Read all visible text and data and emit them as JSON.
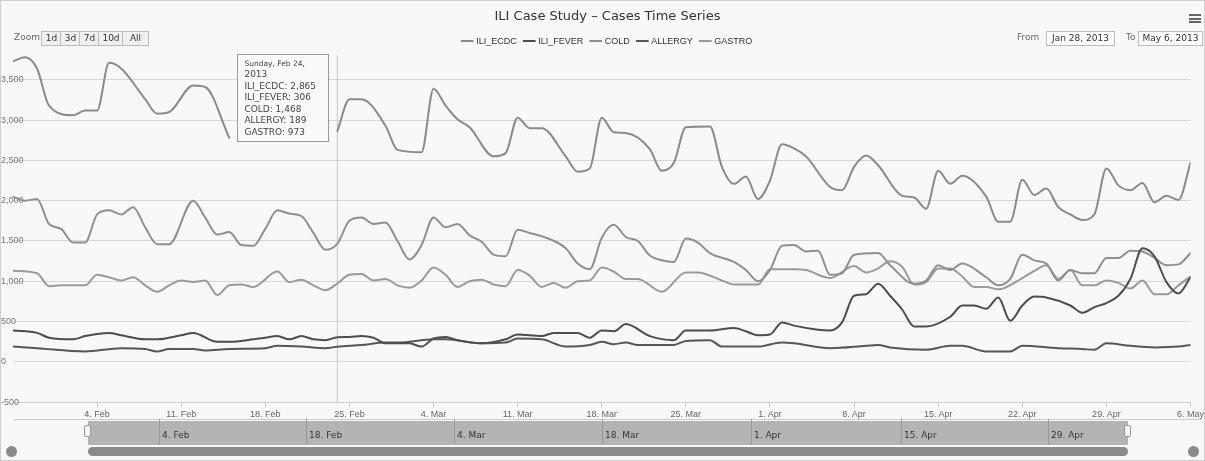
{
  "chart_data": {
    "type": "line",
    "title": "ILI Case Study – Cases Time Series",
    "xlim": [
      "2013-01-28",
      "2013-05-06"
    ],
    "xticks": [
      {
        "value": "2013-02-04",
        "label": "4. Feb"
      },
      {
        "value": "2013-02-11",
        "label": "11. Feb"
      },
      {
        "value": "2013-02-18",
        "label": "18. Feb"
      },
      {
        "value": "2013-02-25",
        "label": "25. Feb"
      },
      {
        "value": "2013-03-04",
        "label": "4. Mar"
      },
      {
        "value": "2013-03-11",
        "label": "11. Mar"
      },
      {
        "value": "2013-03-18",
        "label": "18. Mar"
      },
      {
        "value": "2013-03-25",
        "label": "25. Mar"
      },
      {
        "value": "2013-04-01",
        "label": "1. Apr"
      },
      {
        "value": "2013-04-08",
        "label": "8. Apr"
      },
      {
        "value": "2013-04-15",
        "label": "15. Apr"
      },
      {
        "value": "2013-04-22",
        "label": "22. Apr"
      },
      {
        "value": "2013-04-29",
        "label": "29. Apr"
      },
      {
        "value": "2013-05-06",
        "label": "6. May"
      }
    ],
    "ylim": [
      -500,
      3800
    ],
    "yticks": [
      -500,
      0,
      500,
      {
        "value": 1000,
        "label": "1,000"
      },
      {
        "value": 1500,
        "label": "1,500"
      },
      {
        "value": 2000,
        "label": "2,000"
      },
      {
        "value": 2500,
        "label": "2,500"
      },
      {
        "value": 3000,
        "label": "3,000"
      },
      {
        "value": 3500,
        "label": "3,500"
      }
    ],
    "grid": "y",
    "legend": "top",
    "series": [
      {
        "name": "ILI_ECDC",
        "color": "#8a8a8a",
        "x": [
          "2013-01-28",
          "2013-01-29",
          "2013-01-30",
          "2013-01-31",
          "2013-02-02",
          "2013-02-03",
          "2013-02-04",
          "2013-02-05",
          "2013-02-06",
          "2013-02-08",
          "2013-02-09",
          "2013-02-10",
          "2013-02-12",
          "2013-02-13",
          "2013-02-15",
          "2013-02-16",
          "2013-02-17",
          "2013-02-19",
          "2013-02-21",
          "2013-02-23",
          "2013-02-24",
          "2013-02-25",
          "2013-02-26",
          "2013-02-28",
          "2013-03-01",
          "2013-03-03",
          "2013-03-04",
          "2013-03-05",
          "2013-03-06",
          "2013-03-07",
          "2013-03-09",
          "2013-03-10",
          "2013-03-11",
          "2013-03-12",
          "2013-03-13",
          "2013-03-15",
          "2013-03-16",
          "2013-03-17",
          "2013-03-18",
          "2013-03-19",
          "2013-03-20",
          "2013-03-22",
          "2013-03-23",
          "2013-03-24",
          "2013-03-25",
          "2013-03-27",
          "2013-03-28",
          "2013-03-29",
          "2013-03-30",
          "2013-03-31",
          "2013-04-01",
          "2013-04-02",
          "2013-04-03",
          "2013-04-04",
          "2013-04-06",
          "2013-04-07",
          "2013-04-08",
          "2013-04-09",
          "2013-04-10",
          "2013-04-12",
          "2013-04-13",
          "2013-04-14",
          "2013-04-15",
          "2013-04-16",
          "2013-04-17",
          "2013-04-19",
          "2013-04-20",
          "2013-04-21",
          "2013-04-22",
          "2013-04-23",
          "2013-04-24",
          "2013-04-25",
          "2013-04-26",
          "2013-04-27",
          "2013-04-28",
          "2013-04-29",
          "2013-04-30",
          "2013-05-01",
          "2013-05-02",
          "2013-05-03",
          "2013-05-04",
          "2013-05-05",
          "2013-05-06"
        ],
        "values": [
          3730,
          3780,
          3640,
          3180,
          3060,
          3120,
          3120,
          3710,
          3640,
          3260,
          3080,
          3100,
          3430,
          3410,
          2780,
          null,
          null,
          null,
          null,
          null,
          2865,
          3260,
          3260,
          2930,
          2630,
          2600,
          3390,
          3180,
          3010,
          2910,
          2550,
          2590,
          3030,
          2900,
          2900,
          2550,
          2360,
          2400,
          3030,
          2850,
          2840,
          2640,
          2370,
          2470,
          2910,
          2920,
          2420,
          2210,
          2300,
          2020,
          2250,
          2700,
          2650,
          2550,
          2170,
          2130,
          2420,
          2560,
          2440,
          2060,
          2040,
          1900,
          2370,
          2210,
          2310,
          2050,
          1740,
          1740,
          2260,
          2070,
          2150,
          1920,
          1830,
          1760,
          1830,
          2400,
          2190,
          2130,
          2220,
          1980,
          2060,
          2010,
          2470
        ]
      },
      {
        "name": "ILI_FEVER",
        "color": "#4d4d4d",
        "x": [
          "2013-01-28",
          "2013-01-30",
          "2013-01-31",
          "2013-02-02",
          "2013-02-03",
          "2013-02-05",
          "2013-02-06",
          "2013-02-08",
          "2013-02-09",
          "2013-02-11",
          "2013-02-12",
          "2013-02-14",
          "2013-02-15",
          "2013-02-17",
          "2013-02-18",
          "2013-02-19",
          "2013-02-20",
          "2013-02-21",
          "2013-02-22",
          "2013-02-23",
          "2013-02-24",
          "2013-02-25",
          "2013-02-26",
          "2013-02-27",
          "2013-02-28",
          "2013-03-01",
          "2013-03-02",
          "2013-03-03",
          "2013-03-04",
          "2013-03-05",
          "2013-03-06",
          "2013-03-08",
          "2013-03-10",
          "2013-03-11",
          "2013-03-13",
          "2013-03-14",
          "2013-03-16",
          "2013-03-17",
          "2013-03-18",
          "2013-03-19",
          "2013-03-20",
          "2013-03-22",
          "2013-03-24",
          "2013-03-25",
          "2013-03-27",
          "2013-03-29",
          "2013-03-30",
          "2013-03-31",
          "2013-04-01",
          "2013-04-02",
          "2013-04-03",
          "2013-04-05",
          "2013-04-06",
          "2013-04-07",
          "2013-04-08",
          "2013-04-09",
          "2013-04-10",
          "2013-04-11",
          "2013-04-12",
          "2013-04-13",
          "2013-04-14",
          "2013-04-16",
          "2013-04-17",
          "2013-04-18",
          "2013-04-19",
          "2013-04-20",
          "2013-04-21",
          "2013-04-22",
          "2013-04-23",
          "2013-04-24",
          "2013-04-26",
          "2013-04-27",
          "2013-04-28",
          "2013-04-29",
          "2013-04-30",
          "2013-05-01",
          "2013-05-02",
          "2013-05-03",
          "2013-05-04",
          "2013-05-05",
          "2013-05-06"
        ],
        "values": [
          390,
          360,
          300,
          280,
          320,
          360,
          330,
          280,
          280,
          330,
          360,
          250,
          250,
          280,
          300,
          320,
          280,
          320,
          280,
          270,
          306,
          310,
          320,
          300,
          230,
          230,
          230,
          190,
          290,
          310,
          270,
          230,
          280,
          340,
          320,
          360,
          360,
          300,
          390,
          380,
          470,
          320,
          270,
          390,
          390,
          420,
          380,
          330,
          340,
          490,
          450,
          400,
          390,
          490,
          820,
          840,
          970,
          820,
          650,
          440,
          440,
          560,
          700,
          700,
          660,
          800,
          510,
          700,
          810,
          800,
          700,
          610,
          680,
          730,
          820,
          1030,
          1410,
          1310,
          990,
          850,
          1050
        ]
      },
      {
        "name": "COLD",
        "color": "#8f8f8f",
        "x": [
          "2013-01-28",
          "2013-01-29",
          "2013-01-30",
          "2013-01-31",
          "2013-02-01",
          "2013-02-02",
          "2013-02-03",
          "2013-02-04",
          "2013-02-05",
          "2013-02-06",
          "2013-02-07",
          "2013-02-08",
          "2013-02-09",
          "2013-02-10",
          "2013-02-12",
          "2013-02-13",
          "2013-02-14",
          "2013-02-15",
          "2013-02-16",
          "2013-02-17",
          "2013-02-18",
          "2013-02-19",
          "2013-02-20",
          "2013-02-21",
          "2013-02-22",
          "2013-02-23",
          "2013-02-24",
          "2013-02-25",
          "2013-02-26",
          "2013-02-27",
          "2013-02-28",
          "2013-03-01",
          "2013-03-02",
          "2013-03-03",
          "2013-03-04",
          "2013-03-05",
          "2013-03-06",
          "2013-03-07",
          "2013-03-08",
          "2013-03-09",
          "2013-03-10",
          "2013-03-11",
          "2013-03-12",
          "2013-03-13",
          "2013-03-15",
          "2013-03-16",
          "2013-03-17",
          "2013-03-18",
          "2013-03-19",
          "2013-03-20",
          "2013-03-21",
          "2013-03-22",
          "2013-03-23",
          "2013-03-24",
          "2013-03-25",
          "2013-03-26",
          "2013-03-27",
          "2013-03-29",
          "2013-03-30",
          "2013-03-31",
          "2013-04-01",
          "2013-04-02",
          "2013-04-03",
          "2013-04-04",
          "2013-04-05",
          "2013-04-06",
          "2013-04-07",
          "2013-04-08",
          "2013-04-10",
          "2013-04-11",
          "2013-04-13",
          "2013-04-14",
          "2013-04-15",
          "2013-04-16",
          "2013-04-17",
          "2013-04-19",
          "2013-04-20",
          "2013-04-21",
          "2013-04-22",
          "2013-04-23",
          "2013-04-24",
          "2013-04-25",
          "2013-04-26",
          "2013-04-27",
          "2013-04-28",
          "2013-04-29",
          "2013-04-30",
          "2013-05-01",
          "2013-05-02",
          "2013-05-03",
          "2013-05-04",
          "2013-05-05",
          "2013-05-06"
        ],
        "values": [
          2050,
          2000,
          2020,
          1710,
          1650,
          1480,
          1480,
          1830,
          1880,
          1830,
          1920,
          1670,
          1460,
          1460,
          2000,
          1790,
          1580,
          1610,
          1450,
          1440,
          1650,
          1880,
          1840,
          1810,
          1600,
          1390,
          1468,
          1750,
          1790,
          1710,
          1730,
          1500,
          1270,
          1450,
          1790,
          1670,
          1710,
          1570,
          1490,
          1330,
          1310,
          1640,
          1600,
          1560,
          1410,
          1220,
          1150,
          1540,
          1700,
          1550,
          1500,
          1320,
          1260,
          1240,
          1530,
          1480,
          1350,
          1240,
          1140,
          1000,
          1140,
          1440,
          1450,
          1370,
          1380,
          1080,
          1100,
          1330,
          1350,
          1200,
          970,
          1010,
          1200,
          1140,
          1220,
          1050,
          950,
          1030,
          1330,
          1260,
          1220,
          1010,
          1140,
          1100,
          1100,
          1290,
          1290,
          1380,
          1370,
          1290,
          1200,
          1210,
          1350
        ]
      },
      {
        "name": "ALLERGY",
        "color": "#575757",
        "x": [
          "2013-01-28",
          "2013-01-30",
          "2013-02-03",
          "2013-02-06",
          "2013-02-08",
          "2013-02-09",
          "2013-02-10",
          "2013-02-12",
          "2013-02-13",
          "2013-02-15",
          "2013-02-18",
          "2013-02-19",
          "2013-02-21",
          "2013-02-23",
          "2013-02-24",
          "2013-02-26",
          "2013-02-28",
          "2013-03-01",
          "2013-03-04",
          "2013-03-05",
          "2013-03-08",
          "2013-03-10",
          "2013-03-11",
          "2013-03-13",
          "2013-03-15",
          "2013-03-17",
          "2013-03-18",
          "2013-03-19",
          "2013-03-20",
          "2013-03-21",
          "2013-03-24",
          "2013-03-25",
          "2013-03-27",
          "2013-03-28",
          "2013-03-31",
          "2013-04-02",
          "2013-04-03",
          "2013-04-06",
          "2013-04-09",
          "2013-04-10",
          "2013-04-11",
          "2013-04-14",
          "2013-04-16",
          "2013-04-17",
          "2013-04-19",
          "2013-04-21",
          "2013-04-22",
          "2013-04-25",
          "2013-04-27",
          "2013-04-28",
          "2013-04-29",
          "2013-05-01",
          "2013-05-03",
          "2013-05-05",
          "2013-05-06"
        ],
        "values": [
          190,
          170,
          130,
          170,
          160,
          130,
          160,
          160,
          140,
          160,
          170,
          200,
          190,
          170,
          189,
          210,
          240,
          240,
          280,
          280,
          230,
          240,
          290,
          280,
          190,
          210,
          250,
          220,
          240,
          210,
          210,
          260,
          270,
          190,
          190,
          240,
          230,
          170,
          200,
          210,
          180,
          150,
          200,
          200,
          130,
          130,
          200,
          170,
          160,
          150,
          230,
          200,
          180,
          190,
          210
        ]
      },
      {
        "name": "GASTRO",
        "color": "#9a9a9a",
        "x": [
          "2013-01-28",
          "2013-01-30",
          "2013-01-31",
          "2013-02-01",
          "2013-02-03",
          "2013-02-04",
          "2013-02-05",
          "2013-02-06",
          "2013-02-07",
          "2013-02-08",
          "2013-02-09",
          "2013-02-10",
          "2013-02-11",
          "2013-02-12",
          "2013-02-13",
          "2013-02-14",
          "2013-02-15",
          "2013-02-16",
          "2013-02-17",
          "2013-02-19",
          "2013-02-20",
          "2013-02-21",
          "2013-02-22",
          "2013-02-23",
          "2013-02-24",
          "2013-02-25",
          "2013-02-26",
          "2013-02-27",
          "2013-02-28",
          "2013-03-01",
          "2013-03-02",
          "2013-03-03",
          "2013-03-04",
          "2013-03-05",
          "2013-03-06",
          "2013-03-07",
          "2013-03-08",
          "2013-03-09",
          "2013-03-10",
          "2013-03-11",
          "2013-03-12",
          "2013-03-13",
          "2013-03-14",
          "2013-03-15",
          "2013-03-16",
          "2013-03-17",
          "2013-03-18",
          "2013-03-19",
          "2013-03-20",
          "2013-03-21",
          "2013-03-23",
          "2013-03-25",
          "2013-03-26",
          "2013-03-28",
          "2013-03-29",
          "2013-03-31",
          "2013-04-01",
          "2013-04-03",
          "2013-04-04",
          "2013-04-06",
          "2013-04-08",
          "2013-04-09",
          "2013-04-10",
          "2013-04-11",
          "2013-04-12",
          "2013-04-13",
          "2013-04-14",
          "2013-04-15",
          "2013-04-16",
          "2013-04-17",
          "2013-04-18",
          "2013-04-19",
          "2013-04-20",
          "2013-04-22",
          "2013-04-23",
          "2013-04-24",
          "2013-04-25",
          "2013-04-26",
          "2013-04-27",
          "2013-04-28",
          "2013-04-29",
          "2013-04-30",
          "2013-05-01",
          "2013-05-02",
          "2013-05-03",
          "2013-05-04",
          "2013-05-05",
          "2013-05-06"
        ],
        "values": [
          1130,
          1100,
          940,
          950,
          950,
          1080,
          1050,
          1010,
          1050,
          950,
          870,
          950,
          1010,
          990,
          1010,
          830,
          950,
          960,
          930,
          1120,
          990,
          1020,
          950,
          890,
          973,
          1080,
          1090,
          1010,
          1030,
          950,
          920,
          1010,
          1170,
          1080,
          930,
          1000,
          1020,
          960,
          940,
          1140,
          1070,
          930,
          980,
          920,
          1000,
          1010,
          1170,
          1120,
          1030,
          1030,
          870,
          1110,
          1110,
          1010,
          960,
          960,
          1150,
          1150,
          1140,
          1040,
          1190,
          1110,
          1160,
          1250,
          1180,
          960,
          990,
          1160,
          1160,
          1060,
          930,
          930,
          900,
          1040,
          1130,
          1200,
          1030,
          1140,
          950,
          950,
          1010,
          980,
          910,
          1010,
          840,
          840,
          950,
          1060
        ]
      }
    ],
    "ref_lines": [
      {
        "axis": "x",
        "value": "2013-02-24",
        "color": "#c8c8c8"
      }
    ],
    "annotations": [
      "Zoom",
      "1d",
      "3d",
      "7d",
      "10d",
      "All",
      "From",
      "Jan 28, 2013",
      "To",
      "May 6, 2013",
      "4. Feb",
      "18. Feb",
      "4. Mar",
      "18. Mar",
      "1. Apr",
      "15. Apr",
      "29. Apr",
      {
        "text": "Sunday, Feb 24, 2013\nILI_ECDC: 2,865\nILI_FEVER: 306\nCOLD: 1,468\nALLERGY: 189\nGASTRO: 973",
        "x": "2013-02-24",
        "y": 2865
      }
    ]
  }
}
